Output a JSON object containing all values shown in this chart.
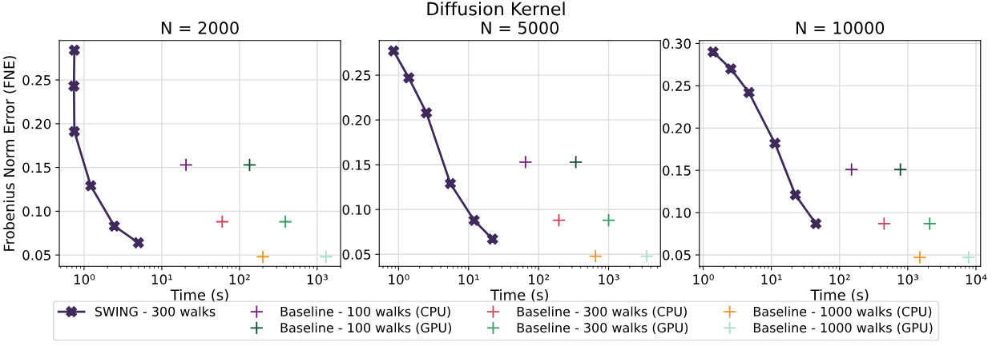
{
  "chart_data": [
    {
      "type": "line",
      "title": "N = 2000",
      "xlabel": "Time (s)",
      "ylabel": "Frobenius Norm Error (FNE)",
      "log": "x",
      "grid": true,
      "legend": "bottom",
      "marker": "cross",
      "xlim": [
        0.48,
        2000
      ],
      "xticks": [
        {
          "value": 1,
          "label": "10⁰"
        },
        {
          "value": 10,
          "label": "10¹"
        },
        {
          "value": 100,
          "label": "10²"
        },
        {
          "value": 1000,
          "label": "10³"
        }
      ],
      "ylim": [
        0.037,
        0.295
      ],
      "yticks": [
        {
          "value": 0.05,
          "label": "0.05"
        },
        {
          "value": 0.1,
          "label": "0.10"
        },
        {
          "value": 0.15,
          "label": "0.15"
        },
        {
          "value": 0.2,
          "label": "0.20"
        },
        {
          "value": 0.25,
          "label": "0.25"
        }
      ],
      "series": [
        {
          "name": "SWING - 300 walks",
          "type": "line",
          "color": "#3f2a5c",
          "x": [
            0.75,
            0.74,
            0.75,
            1.22,
            2.45,
            5.0
          ],
          "values": [
            0.284,
            0.243,
            0.191,
            0.129,
            0.083,
            0.064
          ]
        },
        {
          "name": "Baseline - 100 walks (CPU)",
          "type": "scatter",
          "color": "#6a1b7a",
          "x": [
            20.5
          ],
          "values": [
            0.153
          ]
        },
        {
          "name": "Baseline - 100 walks (GPU)",
          "type": "scatter",
          "color": "#0b4d2a",
          "x": [
            135
          ],
          "values": [
            0.153
          ]
        },
        {
          "name": "Baseline - 300 walks (CPU)",
          "type": "scatter",
          "color": "#c8415a",
          "x": [
            60
          ],
          "values": [
            0.088
          ]
        },
        {
          "name": "Baseline - 300 walks (GPU)",
          "type": "scatter",
          "color": "#2e9e5a",
          "x": [
            390
          ],
          "values": [
            0.088
          ]
        },
        {
          "name": "Baseline - 1000 walks (CPU)",
          "type": "scatter",
          "color": "#f7931e",
          "x": [
            200
          ],
          "values": [
            0.048
          ]
        },
        {
          "name": "Baseline - 1000 walks (GPU)",
          "type": "scatter",
          "color": "#a8ddd0",
          "x": [
            1300
          ],
          "values": [
            0.048
          ]
        }
      ]
    },
    {
      "type": "line",
      "title": "N = 5000",
      "subtitle": "Diffusion Kernel",
      "xlabel": "Time (s)",
      "log": "x",
      "grid": true,
      "marker": "cross",
      "xlim": [
        0.53,
        5500
      ],
      "xticks": [
        {
          "value": 1,
          "label": "10⁰"
        },
        {
          "value": 10,
          "label": "10¹"
        },
        {
          "value": 100,
          "label": "10²"
        },
        {
          "value": 1000,
          "label": "10³"
        }
      ],
      "ylim": [
        0.0366,
        0.2886
      ],
      "yticks": [
        {
          "value": 0.05,
          "label": "0.05"
        },
        {
          "value": 0.1,
          "label": "0.10"
        },
        {
          "value": 0.15,
          "label": "0.15"
        },
        {
          "value": 0.2,
          "label": "0.20"
        },
        {
          "value": 0.25,
          "label": "0.25"
        }
      ],
      "series": [
        {
          "type": "line",
          "color": "#3f2a5c",
          "x": [
            0.85,
            1.4,
            2.5,
            5.5,
            12,
            22
          ],
          "values": [
            0.277,
            0.247,
            0.208,
            0.129,
            0.088,
            0.067
          ]
        },
        {
          "type": "scatter",
          "color": "#6a1b7a",
          "x": [
            65
          ],
          "values": [
            0.153
          ]
        },
        {
          "type": "scatter",
          "color": "#0b4d2a",
          "x": [
            340
          ],
          "values": [
            0.153
          ]
        },
        {
          "type": "scatter",
          "color": "#c8415a",
          "x": [
            195
          ],
          "values": [
            0.088
          ]
        },
        {
          "type": "scatter",
          "color": "#2e9e5a",
          "x": [
            1000
          ],
          "values": [
            0.088
          ]
        },
        {
          "type": "scatter",
          "color": "#f7931e",
          "x": [
            650
          ],
          "values": [
            0.048
          ]
        },
        {
          "type": "scatter",
          "color": "#a8ddd0",
          "x": [
            3500
          ],
          "values": [
            0.048
          ]
        }
      ]
    },
    {
      "type": "line",
      "title": "N = 10000",
      "xlabel": "Time (s)",
      "log": "x",
      "grid": true,
      "marker": "cross",
      "xlim": [
        0.88,
        11700
      ],
      "xticks": [
        {
          "value": 1,
          "label": "10⁰"
        },
        {
          "value": 10,
          "label": "10¹"
        },
        {
          "value": 100,
          "label": "10²"
        },
        {
          "value": 1000,
          "label": "10³"
        },
        {
          "value": 10000,
          "label": "10⁴"
        }
      ],
      "ylim": [
        0.0365,
        0.3034
      ],
      "yticks": [
        {
          "value": 0.05,
          "label": "0.05"
        },
        {
          "value": 0.1,
          "label": "0.10"
        },
        {
          "value": 0.15,
          "label": "0.15"
        },
        {
          "value": 0.2,
          "label": "0.20"
        },
        {
          "value": 0.25,
          "label": "0.25"
        },
        {
          "value": 0.3,
          "label": "0.30"
        }
      ],
      "series": [
        {
          "type": "line",
          "color": "#3f2a5c",
          "x": [
            1.4,
            2.55,
            4.7,
            11.3,
            22.5,
            45
          ],
          "values": [
            0.29,
            0.27,
            0.242,
            0.182,
            0.121,
            0.087
          ]
        },
        {
          "type": "scatter",
          "color": "#6a1b7a",
          "x": [
            150
          ],
          "values": [
            0.151
          ]
        },
        {
          "type": "scatter",
          "color": "#0b4d2a",
          "x": [
            780
          ],
          "values": [
            0.151
          ]
        },
        {
          "type": "scatter",
          "color": "#c8415a",
          "x": [
            450
          ],
          "values": [
            0.087
          ]
        },
        {
          "type": "scatter",
          "color": "#2e9e5a",
          "x": [
            2100
          ],
          "values": [
            0.087
          ]
        },
        {
          "type": "scatter",
          "color": "#f7931e",
          "x": [
            1500
          ],
          "values": [
            0.047
          ]
        },
        {
          "type": "scatter",
          "color": "#a8ddd0",
          "x": [
            7800
          ],
          "values": [
            0.047
          ]
        }
      ]
    }
  ]
}
